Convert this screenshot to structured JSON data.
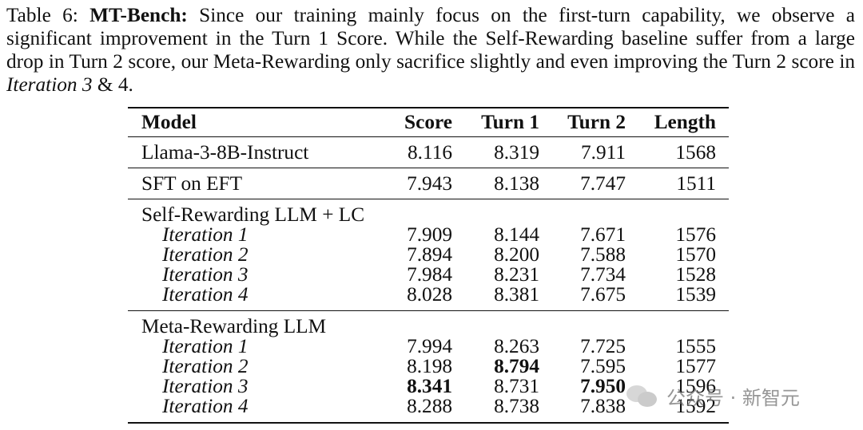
{
  "caption": {
    "label": "Table 6:",
    "bold": "MT-Bench:",
    "text1": " Since our training mainly focus on the first-turn capability, we observe a significant improvement in the Turn 1 Score. While the Self-Rewarding baseline suffer from a large drop in Turn 2 score, our Meta-Rewarding only sacrifice slightly and even improving the Turn 2 score in ",
    "italic": "Iteration 3",
    "text2": " & 4."
  },
  "table": {
    "headers": [
      "Model",
      "Score",
      "Turn 1",
      "Turn 2",
      "Length"
    ],
    "rows": [
      {
        "model": "Llama-3-8B-Instruct",
        "score": "8.116",
        "turn1": "8.319",
        "turn2": "7.911",
        "length": "1568"
      },
      {
        "model": "SFT on EFT",
        "score": "7.943",
        "turn1": "8.138",
        "turn2": "7.747",
        "length": "1511"
      }
    ],
    "groups": [
      {
        "name": "Self-Rewarding LLM + LC",
        "rows": [
          {
            "model": "Iteration 1",
            "score": "7.909",
            "turn1": "8.144",
            "turn2": "7.671",
            "length": "1576"
          },
          {
            "model": "Iteration 2",
            "score": "7.894",
            "turn1": "8.200",
            "turn2": "7.588",
            "length": "1570"
          },
          {
            "model": "Iteration 3",
            "score": "7.984",
            "turn1": "8.231",
            "turn2": "7.734",
            "length": "1528"
          },
          {
            "model": "Iteration 4",
            "score": "8.028",
            "turn1": "8.381",
            "turn2": "7.675",
            "length": "1539"
          }
        ]
      },
      {
        "name": "Meta-Rewarding LLM",
        "rows": [
          {
            "model": "Iteration 1",
            "score": "7.994",
            "turn1": "8.263",
            "turn2": "7.725",
            "length": "1555"
          },
          {
            "model": "Iteration 2",
            "score": "8.198",
            "turn1": "8.794",
            "turn2": "7.595",
            "length": "1577"
          },
          {
            "model": "Iteration 3",
            "score": "8.341",
            "turn1": "8.731",
            "turn2": "7.950",
            "length": "1596"
          },
          {
            "model": "Iteration 4",
            "score": "8.288",
            "turn1": "8.738",
            "turn2": "7.838",
            "length": "1592"
          }
        ]
      }
    ]
  },
  "watermark": {
    "text": "公众号 · 新智元",
    "icon": "wechat-icon"
  }
}
